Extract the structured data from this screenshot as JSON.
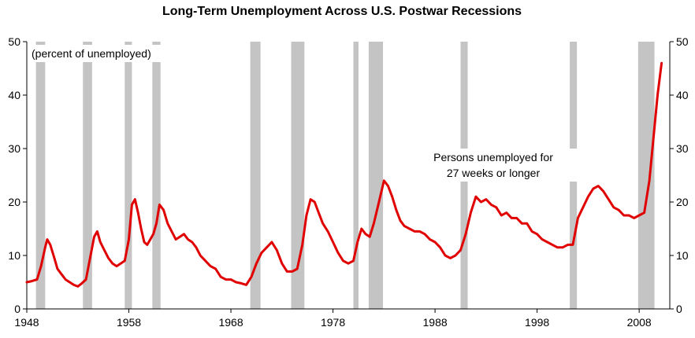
{
  "chart_data": {
    "type": "line",
    "title": "Long-Term Unemployment Across U.S. Postwar Recessions",
    "units_note": "(percent of unemployed)",
    "annotation": [
      "Persons unemployed for",
      "27 weeks or longer"
    ],
    "xlim": [
      1948,
      2011
    ],
    "ylim": [
      0,
      50
    ],
    "x_ticks": [
      1948,
      1958,
      1968,
      1978,
      1988,
      1998,
      2008
    ],
    "y_ticks": [
      0,
      10,
      20,
      30,
      40,
      50
    ],
    "grid": false,
    "colors": {
      "line": "#e00000",
      "recession": "#c4c4c4"
    },
    "recessions": [
      [
        1948.9,
        1949.8
      ],
      [
        1953.5,
        1954.4
      ],
      [
        1957.6,
        1958.3
      ],
      [
        1960.3,
        1961.1
      ],
      [
        1969.9,
        1970.9
      ],
      [
        1973.9,
        1975.2
      ],
      [
        1980.0,
        1980.5
      ],
      [
        1981.5,
        1982.9
      ],
      [
        1990.5,
        1991.2
      ],
      [
        2001.2,
        2001.9
      ],
      [
        2007.9,
        2009.5
      ]
    ],
    "series": [
      {
        "x": [
          1948.0,
          1948.5,
          1949.0,
          1949.4,
          1949.8,
          1950.0,
          1950.3,
          1950.7,
          1951.0,
          1951.4,
          1951.8,
          1952.2,
          1952.6,
          1953.0,
          1953.4,
          1953.8,
          1954.2,
          1954.6,
          1954.9,
          1955.2,
          1955.6,
          1956.0,
          1956.4,
          1956.8,
          1957.2,
          1957.6,
          1958.0,
          1958.3,
          1958.6,
          1958.9,
          1959.2,
          1959.5,
          1959.8,
          1960.1,
          1960.4,
          1960.7,
          1961.0,
          1961.4,
          1961.8,
          1962.2,
          1962.6,
          1963.0,
          1963.4,
          1963.8,
          1964.2,
          1964.6,
          1965.0,
          1965.5,
          1966.0,
          1966.5,
          1967.0,
          1967.5,
          1968.0,
          1968.5,
          1969.0,
          1969.5,
          1970.0,
          1970.5,
          1971.0,
          1971.5,
          1972.0,
          1972.5,
          1973.0,
          1973.5,
          1974.0,
          1974.5,
          1975.0,
          1975.4,
          1975.8,
          1976.2,
          1976.6,
          1977.0,
          1977.5,
          1978.0,
          1978.5,
          1979.0,
          1979.5,
          1980.0,
          1980.4,
          1980.8,
          1981.2,
          1981.6,
          1982.0,
          1982.5,
          1983.0,
          1983.4,
          1983.8,
          1984.2,
          1984.6,
          1985.0,
          1985.5,
          1986.0,
          1986.5,
          1987.0,
          1987.5,
          1988.0,
          1988.5,
          1989.0,
          1989.5,
          1990.0,
          1990.5,
          1991.0,
          1991.5,
          1992.0,
          1992.5,
          1993.0,
          1993.5,
          1994.0,
          1994.5,
          1995.0,
          1995.5,
          1996.0,
          1996.5,
          1997.0,
          1997.5,
          1998.0,
          1998.5,
          1999.0,
          1999.5,
          2000.0,
          2000.5,
          2001.0,
          2001.5,
          2002.0,
          2002.5,
          2003.0,
          2003.5,
          2004.0,
          2004.5,
          2005.0,
          2005.5,
          2006.0,
          2006.5,
          2007.0,
          2007.5,
          2008.0,
          2008.5,
          2009.0,
          2009.4,
          2009.8,
          2010.2
        ],
        "y": [
          5.0,
          5.2,
          5.5,
          8.0,
          11.5,
          13.0,
          12.0,
          9.5,
          7.5,
          6.5,
          5.5,
          5.0,
          4.5,
          4.2,
          4.8,
          5.5,
          9.5,
          13.5,
          14.5,
          12.5,
          11.0,
          9.5,
          8.5,
          8.0,
          8.5,
          9.0,
          13.0,
          19.5,
          20.5,
          18.0,
          15.0,
          12.5,
          12.0,
          13.0,
          14.0,
          16.0,
          19.5,
          18.5,
          16.0,
          14.5,
          13.0,
          13.5,
          14.0,
          13.0,
          12.5,
          11.5,
          10.0,
          9.0,
          8.0,
          7.5,
          6.0,
          5.5,
          5.5,
          5.0,
          4.8,
          4.5,
          6.0,
          8.5,
          10.5,
          11.5,
          12.5,
          11.0,
          8.5,
          7.0,
          7.0,
          7.5,
          12.0,
          17.5,
          20.5,
          20.0,
          18.0,
          16.0,
          14.5,
          12.5,
          10.5,
          9.0,
          8.5,
          9.0,
          12.5,
          15.0,
          14.0,
          13.5,
          16.0,
          20.0,
          24.0,
          23.0,
          21.0,
          18.5,
          16.5,
          15.5,
          15.0,
          14.5,
          14.5,
          14.0,
          13.0,
          12.5,
          11.5,
          10.0,
          9.5,
          10.0,
          11.0,
          14.0,
          18.0,
          21.0,
          20.0,
          20.5,
          19.5,
          19.0,
          17.5,
          18.0,
          17.0,
          17.0,
          16.0,
          16.0,
          14.5,
          14.0,
          13.0,
          12.5,
          12.0,
          11.5,
          11.5,
          12.0,
          12.0,
          17.0,
          19.0,
          21.0,
          22.5,
          23.0,
          22.0,
          20.5,
          19.0,
          18.5,
          17.5,
          17.5,
          17.0,
          17.5,
          18.0,
          24.0,
          32.0,
          40.0,
          46.0
        ]
      }
    ]
  }
}
